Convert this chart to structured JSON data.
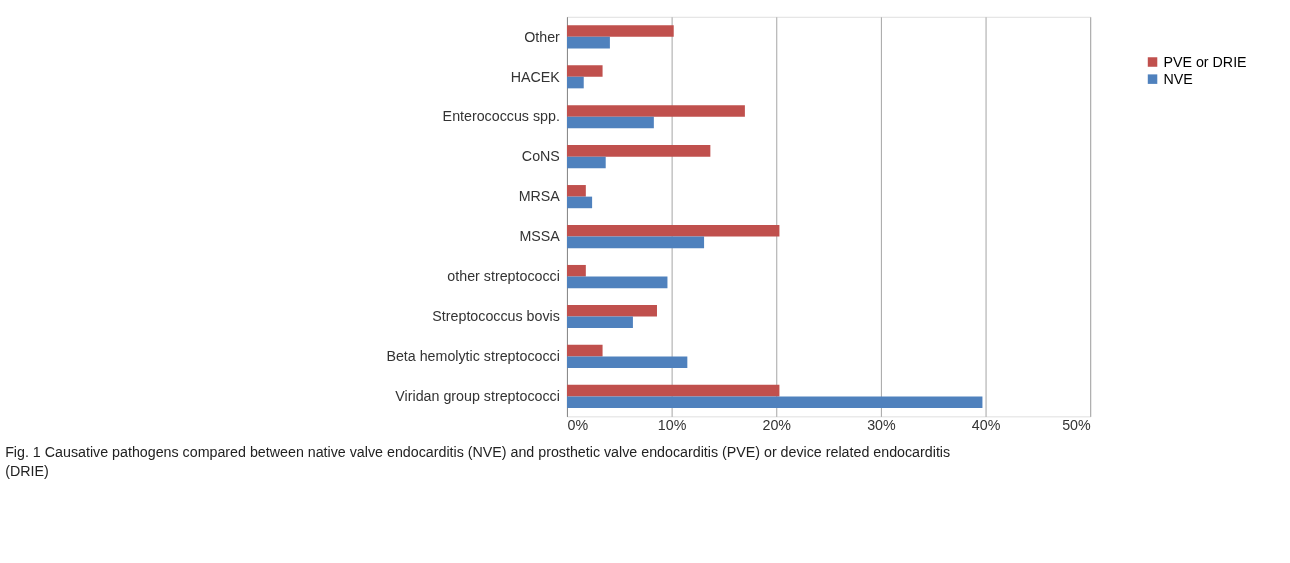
{
  "chart_data": {
    "type": "bar",
    "orientation": "horizontal",
    "categories": [
      "Other",
      "HACEK",
      "Enterococcus spp.",
      "CoNS",
      "MRSA",
      "MSSA",
      "other streptococci",
      "Streptococcus bovis",
      "Beta hemolytic streptococci",
      "Viridan group streptococci"
    ],
    "series": [
      {
        "name": "PVE or DRIE",
        "color": "#c0504d",
        "values": [
          10.2,
          3.4,
          17.0,
          13.7,
          1.8,
          20.3,
          1.8,
          8.6,
          3.4,
          20.3
        ]
      },
      {
        "name": "NVE",
        "color": "#4f81bd",
        "values": [
          4.1,
          1.6,
          8.3,
          3.7,
          2.4,
          13.1,
          9.6,
          6.3,
          11.5,
          39.7
        ]
      }
    ],
    "xlim": [
      0,
      50
    ],
    "xticks": [
      {
        "value": 0,
        "label": "0%"
      },
      {
        "value": 10,
        "label": "10%"
      },
      {
        "value": 20,
        "label": "20%"
      },
      {
        "value": 30,
        "label": "30%"
      },
      {
        "value": 40,
        "label": "40%"
      },
      {
        "value": 50,
        "label": "50%"
      }
    ],
    "grid": "x",
    "legend": "right",
    "annotations": [
      "Fig. 1 Causative pathogens compared between native valve endocarditis (NVE) and prosthetic valve endocarditis (PVE) or device related endocarditis (DRIE)"
    ]
  }
}
